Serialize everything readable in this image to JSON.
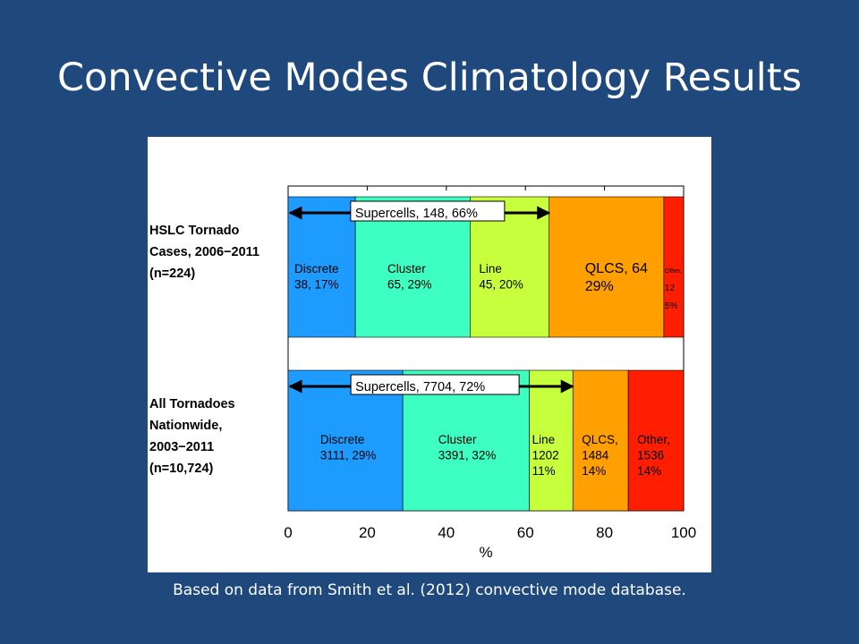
{
  "slide": {
    "title": "Convective Modes Climatology Results",
    "caption": "Based on data from Smith et al. (2012) convective mode database."
  },
  "chart_data": {
    "type": "bar",
    "orientation": "horizontal-stacked",
    "xlabel": "%",
    "xlim": [
      0,
      100
    ],
    "xticks": [
      0,
      20,
      40,
      60,
      80,
      100
    ],
    "colors": {
      "Discrete": "#1e9bff",
      "Cluster": "#3dffc2",
      "Line": "#c8ff3c",
      "QLCS": "#ffa000",
      "Other": "#ff1e00"
    },
    "groups": [
      {
        "label_lines": [
          "HSLC Tornado",
          "Cases, 2006−2011",
          "(n=224)"
        ],
        "supercell_text": "Supercells, 148, 66%",
        "supercell_span": [
          0,
          66
        ],
        "segments": [
          {
            "mode": "Discrete",
            "count": 38,
            "percent": 17,
            "label_lines": [
              "Discrete",
              "38, 17%"
            ]
          },
          {
            "mode": "Cluster",
            "count": 65,
            "percent": 29,
            "label_lines": [
              "Cluster",
              "65, 29%"
            ]
          },
          {
            "mode": "Line",
            "count": 45,
            "percent": 20,
            "label_lines": [
              "Line",
              "45, 20%"
            ]
          },
          {
            "mode": "QLCS",
            "count": 64,
            "percent": 29,
            "label_lines": [
              "QLCS, 64",
              "29%"
            ]
          },
          {
            "mode": "Other",
            "count": 12,
            "percent": 5,
            "label_lines": [
              "Other,",
              "12",
              "5%"
            ]
          }
        ]
      },
      {
        "label_lines": [
          "All Tornadoes",
          "Nationwide,",
          "2003−2011",
          "(n=10,724)"
        ],
        "supercell_text": "Supercells, 7704, 72%",
        "supercell_span": [
          0,
          72
        ],
        "segments": [
          {
            "mode": "Discrete",
            "count": 3111,
            "percent": 29,
            "label_lines": [
              "Discrete",
              "3111, 29%"
            ]
          },
          {
            "mode": "Cluster",
            "count": 3391,
            "percent": 32,
            "label_lines": [
              "Cluster",
              "3391, 32%"
            ]
          },
          {
            "mode": "Line",
            "count": 1202,
            "percent": 11,
            "label_lines": [
              "Line",
              "1202",
              "11%"
            ]
          },
          {
            "mode": "QLCS",
            "count": 1484,
            "percent": 14,
            "label_lines": [
              "QLCS,",
              "1484",
              "14%"
            ]
          },
          {
            "mode": "Other",
            "count": 1536,
            "percent": 14,
            "label_lines": [
              "Other,",
              "1536",
              "14%"
            ]
          }
        ]
      }
    ]
  }
}
